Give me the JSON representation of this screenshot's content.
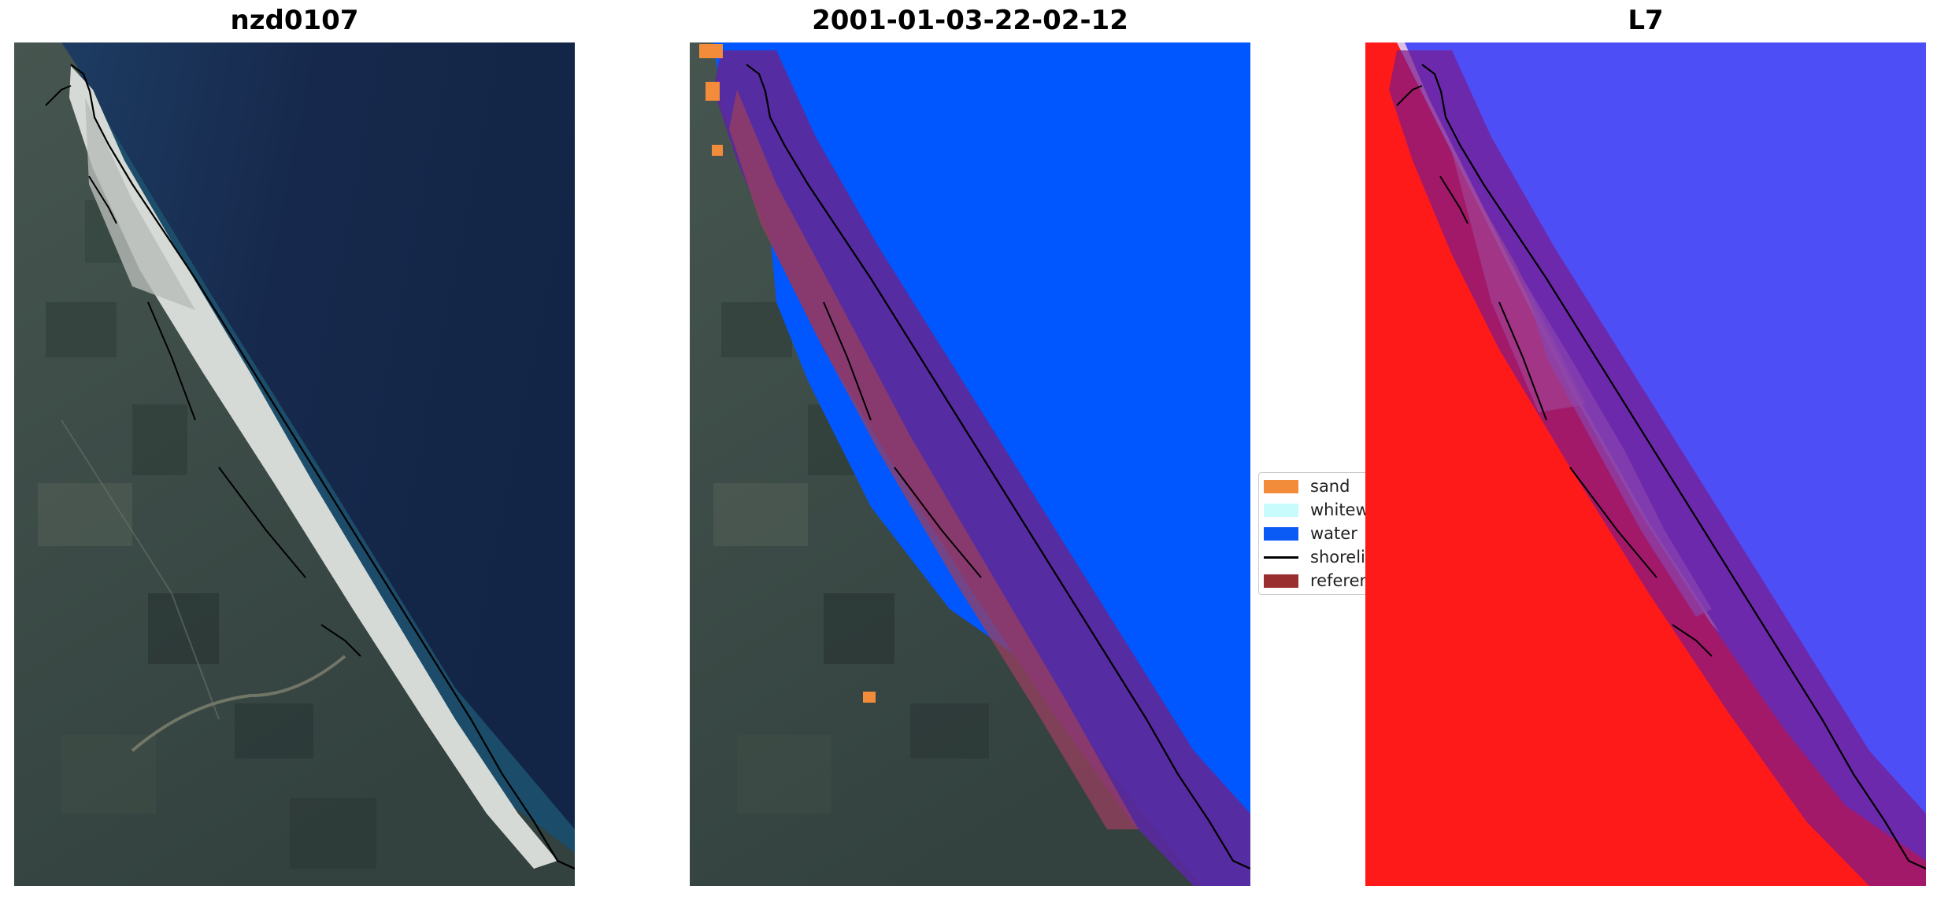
{
  "panels": [
    {
      "title": "nzd0107"
    },
    {
      "title": "2001-01-03-22-02-12"
    },
    {
      "title": "L7"
    }
  ],
  "legend": {
    "items": [
      {
        "label": "sand",
        "type": "patch",
        "color": "#f28c3b"
      },
      {
        "label": "whitewater",
        "type": "patch",
        "color": "#c8fcfc"
      },
      {
        "label": "water",
        "type": "patch",
        "color": "#0a5af5"
      },
      {
        "label": "shoreline",
        "type": "line",
        "color": "#000000"
      },
      {
        "label": "reference shoreline buffer",
        "type": "patch",
        "color": "#9a2f2f"
      }
    ]
  },
  "colors": {
    "deep_sea": "#16284a",
    "land": "#3a4a48",
    "beach": "#d8dcd8",
    "classified_water": "#0057ff",
    "buffer": "#5a2a9c",
    "land_index": "#ff1a1a",
    "water_index": "#3a3af5"
  }
}
